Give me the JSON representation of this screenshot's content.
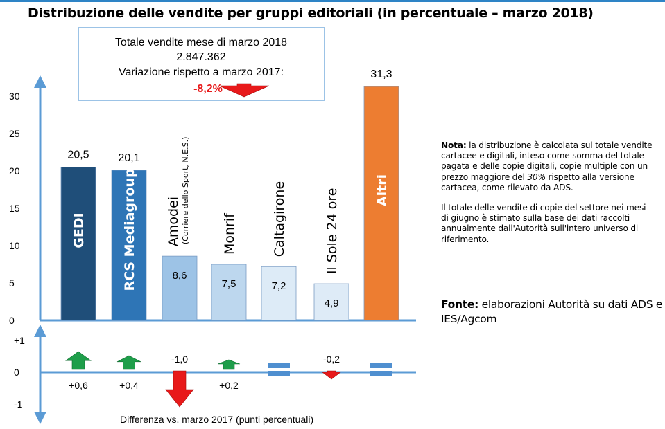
{
  "title": "Distribuzione delle vendite per gruppi editoriali (in percentuale – marzo 2018)",
  "callout": {
    "line1": "Totale vendite mese di marzo 2018",
    "line2": "2.847.362",
    "line3": "Variazione rispetto a marzo 2017:",
    "change": "-8,2%"
  },
  "note": {
    "label": "Nota:",
    "text1_a": " la distribuzione è calcolata sul totale vendite cartacee e digitali, inteso come somma del totale pagata e delle copie digitali, copie multiple con un prezzo maggiore del ",
    "text1_em": "30%",
    "text1_b": " rispetto alla versione cartacea, come rilevato da ADS.",
    "text2": "Il totale delle vendite di copie del settore nei mesi di giugno è stimato sulla base dei dati raccolti annualmente dall'Autorità sull'intero universo di riferimento."
  },
  "source": {
    "label": "Fonte:",
    "text": " elaborazioni Autorità su dati ADS e IES/Agcom"
  },
  "colors": {
    "axis": "#5b9bd5",
    "up": "#1e9e4a",
    "down": "#e8191a",
    "flat": "#4f8fd0",
    "change_text": "#e8191a"
  },
  "chart_data": [
    {
      "type": "bar",
      "categories": [
        "GEDI",
        "RCS Mediagroup",
        "Amodei",
        "Monrif",
        "Caltagirone",
        "Il Sole 24 ore",
        "Altri"
      ],
      "category_sublabels": [
        "",
        "",
        "(Corriere dello Sport, N.E.S.)",
        "",
        "",
        "",
        ""
      ],
      "values": [
        20.5,
        20.1,
        8.6,
        7.5,
        7.2,
        4.9,
        31.3
      ],
      "value_labels": [
        "20,5",
        "20,1",
        "8,6",
        "7,5",
        "7,2",
        "4,9",
        "31,3"
      ],
      "bar_colors": [
        "#1f4e79",
        "#2e75b6",
        "#9dc3e6",
        "#bdd7ee",
        "#ddebf7",
        "#deebf7",
        "#ed7d31"
      ],
      "yticks": [
        "0",
        "5",
        "10",
        "15",
        "20",
        "25",
        "30"
      ],
      "ylim": [
        0,
        32
      ],
      "grid": false
    },
    {
      "type": "bar",
      "title": "Differenza vs. marzo 2017 (punti percentuali)",
      "categories": [
        "GEDI",
        "RCS Mediagroup",
        "Amodei",
        "Monrif",
        "Caltagirone",
        "Il Sole 24 ore",
        "Altri"
      ],
      "values": [
        0.6,
        0.4,
        -1.0,
        0.2,
        0.0,
        -0.2,
        0.0
      ],
      "value_labels": [
        "+0,6",
        "+0,4",
        "-1,0",
        "+0,2",
        "",
        "-0,2",
        ""
      ],
      "yticks": [
        "-1",
        "0",
        "+1"
      ],
      "ylim": [
        -1,
        1
      ],
      "grid": false
    }
  ]
}
